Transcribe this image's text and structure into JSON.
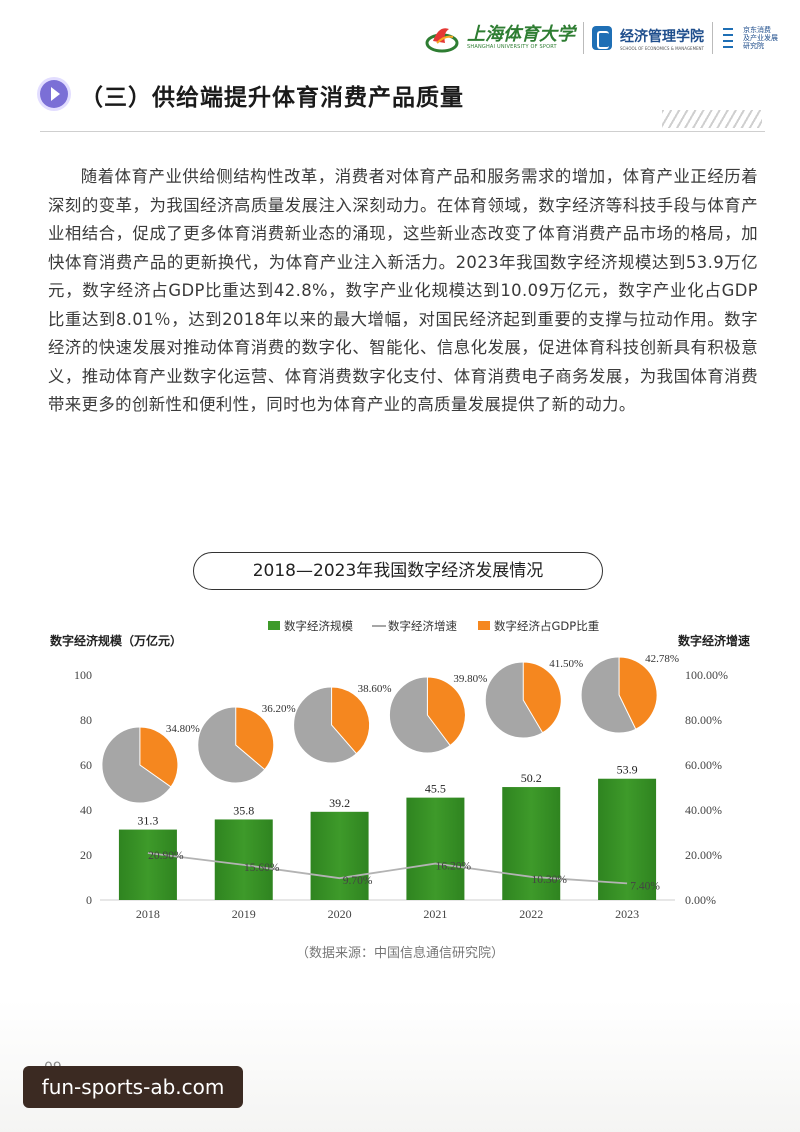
{
  "header": {
    "university_name": "上海体育大学",
    "university_en": "SHANGHAI UNIVERSITY OF SPORT",
    "school_name": "经济管理学院",
    "school_en": "SCHOOL OF ECONOMICS & MANAGEMENT",
    "institute_lines": [
      "京东消费",
      "及产业发展",
      "研究院"
    ]
  },
  "section": {
    "title": "（三）供给端提升体育消费产品质量"
  },
  "body_text": "随着体育产业供给侧结构性改革，消费者对体育产品和服务需求的增加，体育产业正经历着深刻的变革，为我国经济高质量发展注入深刻动力。在体育领域，数字经济等科技手段与体育产业相结合，促成了更多体育消费新业态的涌现，这些新业态改变了体育消费产品市场的格局，加快体育消费产品的更新换代，为体育产业注入新活力。2023年我国数字经济规模达到53.9万亿元，数字经济占GDP比重达到42.8%，数字产业化规模达到10.09万亿元，数字产业化占GDP比重达到8.01％，达到2018年以来的最大增幅，对国民经济起到重要的支撑与拉动作用。数字经济的快速发展对推动体育消费的数字化、智能化、信息化发展，促进体育科技创新具有积极意义，推动体育产业数字化运营、体育消费数字化支付、体育消费电子商务发展，为我国体育消费带来更多的创新性和便利性，同时也为体育产业的高质量发展提供了新的动力。",
  "chart_data": {
    "type": "bar",
    "title": "2018—2023年我国数字经济发展情况",
    "categories": [
      "2018",
      "2019",
      "2020",
      "2021",
      "2022",
      "2023"
    ],
    "series": [
      {
        "name": "数字经济规模",
        "kind": "bar",
        "axis": "left",
        "values": [
          31.3,
          35.8,
          39.2,
          45.5,
          50.2,
          53.9
        ],
        "labels": [
          "31.3",
          "35.8",
          "39.2",
          "45.5",
          "50.2",
          "53.9"
        ]
      },
      {
        "name": "数字经济增速",
        "kind": "line",
        "axis": "right",
        "values": [
          20.9,
          15.6,
          9.7,
          16.2,
          10.3,
          7.4
        ],
        "labels": [
          "20.90%",
          "15.60%",
          "9.70%",
          "16.20%",
          "10.30%",
          "7.40%"
        ]
      },
      {
        "name": "数字经济占GDP比重",
        "kind": "pie",
        "values": [
          34.8,
          36.2,
          38.6,
          39.8,
          41.5,
          42.78
        ],
        "labels": [
          "34.80%",
          "36.20%",
          "38.60%",
          "39.80%",
          "41.50%",
          "42.78%"
        ]
      }
    ],
    "legend": [
      "数字经济规模",
      "数字经济增速",
      "数字经济占GDP比重"
    ],
    "legend_position": "top",
    "ylabel": "数字经济规模（万亿元）",
    "y2label": "数字经济增速",
    "ylim": [
      0,
      100
    ],
    "y2lim": [
      0,
      100
    ],
    "yticks": [
      "0",
      "20",
      "40",
      "60",
      "80",
      "100"
    ],
    "y2ticks": [
      "0.00%",
      "20.00%",
      "40.00%",
      "60.00%",
      "80.00%",
      "100.00%"
    ],
    "colors": {
      "bar": "#3e9a2a",
      "line": "#b3b3b3",
      "pie_share": "#f5871f",
      "pie_rest": "#a6a6a6"
    }
  },
  "source_note": "（数据来源：中国信息通信研究院）",
  "page_number": "09",
  "watermark": "fun-sports-ab.com"
}
